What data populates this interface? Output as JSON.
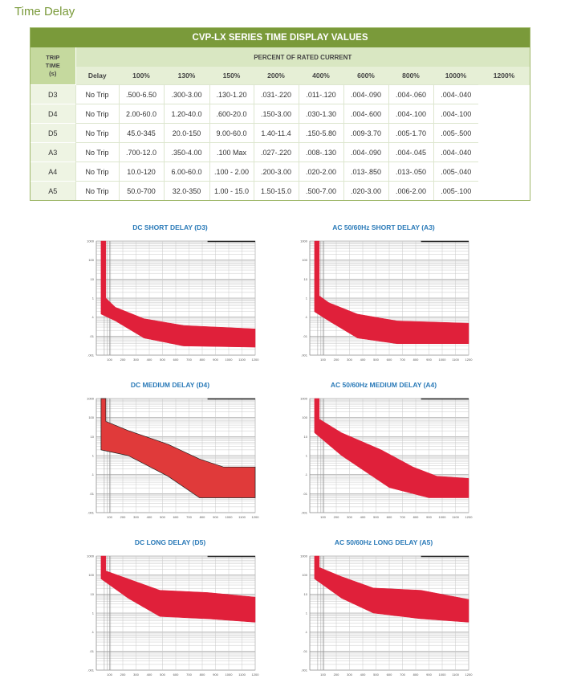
{
  "page_title": "Time Delay",
  "table": {
    "title": "CVP-LX SERIES TIME DISPLAY VALUES",
    "percent_header": "PERCENT OF RATED CURRENT",
    "trip_time_label_1": "TRIP",
    "trip_time_label_2": "TIME",
    "trip_time_label_3": "(s)",
    "columns": [
      "Delay",
      "100%",
      "130%",
      "150%",
      "200%",
      "400%",
      "600%",
      "800%",
      "1000%",
      "1200%"
    ],
    "rows": [
      [
        "D3",
        "No Trip",
        ".500-6.50",
        ".300-3.00",
        ".130-1.20",
        ".031-.220",
        ".011-.120",
        ".004-.090",
        ".004-.060",
        ".004-.040"
      ],
      [
        "D4",
        "No Trip",
        "2.00-60.0",
        "1.20-40.0",
        ".600-20.0",
        ".150-3.00",
        ".030-1.30",
        ".004-.600",
        ".004-.100",
        ".004-.100"
      ],
      [
        "D5",
        "No Trip",
        "45.0-345",
        "20.0-150",
        "9.00-60.0",
        "1.40-11.4",
        ".150-5.80",
        ".009-3.70",
        ".005-1.70",
        ".005-.500"
      ],
      [
        "A3",
        "No Trip",
        ".700-12.0",
        ".350-4.00",
        ".100 Max",
        ".027-.220",
        ".008-.130",
        ".004-.090",
        ".004-.045",
        ".004-.040"
      ],
      [
        "A4",
        "No Trip",
        "10.0-120",
        "6.00-60.0",
        ".100 - 2.00",
        ".200-3.00",
        ".020-2.00",
        ".013-.850",
        ".013-.050",
        ".005-.040"
      ],
      [
        "A5",
        "No Trip",
        "50.0-700",
        "32.0-350",
        "1.00 - 15.0",
        "1.50-15.0",
        ".500-7.00",
        ".020-3.00",
        ".006-2.00",
        ".005-.100"
      ]
    ]
  },
  "charts": [
    {
      "title": "DC SHORT DELAY (D3)",
      "color": "#e0203a"
    },
    {
      "title": "AC 50/60Hz SHORT DELAY (A3)",
      "color": "#e0203a"
    },
    {
      "title": "DC MEDIUM DELAY (D4)",
      "color": "#e03a3a"
    },
    {
      "title": "AC 50/60Hz MEDIUM DELAY (A4)",
      "color": "#e0203a"
    },
    {
      "title": "DC LONG DELAY (D5)",
      "color": "#e0203a"
    },
    {
      "title": "AC 50/60Hz LONG DELAY (A5)",
      "color": "#e0203a"
    }
  ],
  "chart_axis": {
    "y_ticks": [
      "1000",
      "100",
      "10",
      "1",
      ".1",
      ".01",
      ".001"
    ],
    "x_ticks": [
      "100",
      "200",
      "300",
      "400",
      "500",
      "600",
      "700",
      "800",
      "900",
      "1000",
      "1100",
      "1200"
    ]
  },
  "colors": {
    "brand_green": "#7a9a3a",
    "title_blue": "#2a7ab8",
    "band_red": "#e0203a"
  }
}
